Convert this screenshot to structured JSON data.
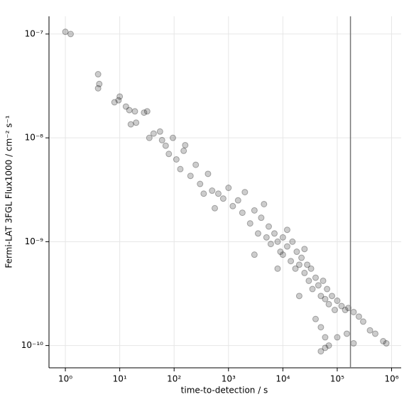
{
  "chart_data": {
    "type": "scatter",
    "xlabel": "time-to-detection / s",
    "ylabel": "Fermi-LAT 3FGL Flux1000 / cm⁻² s⁻¹",
    "log_x": true,
    "log_y": true,
    "grid": true,
    "color": "#000000",
    "opacity": 0.2,
    "xlim": [
      0.5,
      1500000.0
    ],
    "ylim": [
      6.1e-11,
      1.48e-07
    ],
    "xticks": [
      {
        "value": 1,
        "label": "10⁰"
      },
      {
        "value": 10,
        "label": "10¹"
      },
      {
        "value": 100,
        "label": "10²"
      },
      {
        "value": 1000,
        "label": "10³"
      },
      {
        "value": 10000,
        "label": "10⁴"
      },
      {
        "value": 100000,
        "label": "10⁵"
      },
      {
        "value": 1000000,
        "label": "10⁶"
      }
    ],
    "yticks": [
      {
        "value": 1e-10,
        "label": "10⁻¹⁰"
      },
      {
        "value": 1e-09,
        "label": "10⁻⁹"
      },
      {
        "value": 1e-08,
        "label": "10⁻⁸"
      },
      {
        "value": 1e-07,
        "label": "10⁻⁷"
      }
    ],
    "vline": 175000,
    "vline_color": "#777777",
    "x": [
      1,
      1.25,
      4,
      4.2,
      4,
      8,
      10,
      9.5,
      13,
      15,
      16,
      20,
      19,
      28,
      32,
      35,
      42,
      55,
      60,
      70,
      80,
      95,
      110,
      130,
      160,
      150,
      200,
      250,
      300,
      350,
      420,
      500,
      560,
      650,
      800,
      1000,
      1200,
      1500,
      1800,
      2000,
      2500,
      3000,
      3500,
      4000,
      4500,
      5000,
      5500,
      6000,
      7000,
      8000,
      9000,
      10000,
      10000,
      12000,
      14000,
      15000,
      17000,
      18000,
      20000,
      22000,
      25000,
      28000,
      30000,
      33000,
      35000,
      40000,
      45000,
      50000,
      55000,
      60000,
      65000,
      70000,
      80000,
      90000,
      100000,
      120000,
      140000,
      160000,
      200000,
      250000,
      300000,
      400000,
      500000,
      700000,
      800000,
      8000,
      20000,
      40000,
      50000,
      60000,
      70000,
      100000,
      150000,
      200000,
      60000,
      50000,
      3000,
      12000,
      25000
    ],
    "values": [
      1.05e-07,
      1e-07,
      4.1e-08,
      3.3e-08,
      3e-08,
      2.2e-08,
      2.5e-08,
      2.3e-08,
      2e-08,
      1.85e-08,
      1.35e-08,
      1.4e-08,
      1.8e-08,
      1.75e-08,
      1.8e-08,
      1e-08,
      1.1e-08,
      1.15e-08,
      9.5e-09,
      8.4e-09,
      7e-09,
      1e-08,
      6.2e-09,
      5e-09,
      8.5e-09,
      7.5e-09,
      4.3e-09,
      5.5e-09,
      3.6e-09,
      2.9e-09,
      4.5e-09,
      3.1e-09,
      2.1e-09,
      2.9e-09,
      2.6e-09,
      3.3e-09,
      2.2e-09,
      2.5e-09,
      1.9e-09,
      3e-09,
      1.5e-09,
      2e-09,
      1.2e-09,
      1.7e-09,
      2.3e-09,
      1.1e-09,
      1.4e-09,
      9.5e-10,
      1.2e-09,
      1e-09,
      8e-10,
      1.1e-09,
      7.5e-10,
      9e-10,
      6.5e-10,
      1e-09,
      5.5e-10,
      8e-10,
      6e-10,
      7e-10,
      5e-10,
      6e-10,
      4.2e-10,
      5.5e-10,
      3.5e-10,
      4.5e-10,
      3.8e-10,
      3e-10,
      4.2e-10,
      2.8e-10,
      3.5e-10,
      2.5e-10,
      3e-10,
      2.2e-10,
      2.7e-10,
      2.4e-10,
      2.2e-10,
      2.3e-10,
      2.1e-10,
      1.9e-10,
      1.7e-10,
      1.4e-10,
      1.3e-10,
      1.1e-10,
      1.05e-10,
      5.5e-10,
      3e-10,
      1.8e-10,
      1.5e-10,
      1.2e-10,
      1e-10,
      1.2e-10,
      1.3e-10,
      1.05e-10,
      9.5e-11,
      8.8e-11,
      7.5e-10,
      1.3e-09,
      8.5e-10
    ]
  }
}
